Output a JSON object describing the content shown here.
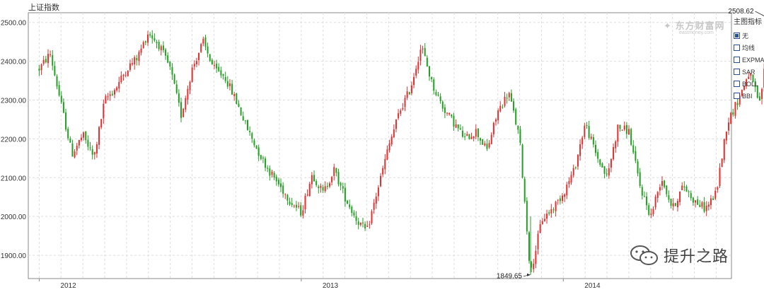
{
  "chart_data": {
    "type": "candlestick",
    "title": "上证指数",
    "xlabel": "",
    "ylabel": "",
    "ylim": [
      1840,
      2525
    ],
    "y_ticks": [
      "1900.00",
      "2000.00",
      "2100.00",
      "2200.00",
      "2300.00",
      "2400.00",
      "2500.00"
    ],
    "x_ticks": [
      "2012",
      "2013",
      "2014"
    ],
    "x_tick_months": [
      0,
      12,
      24
    ],
    "x_range_months": [
      -0.5,
      31.7
    ],
    "grid": true,
    "series": [
      {
        "values": [
          [
            0,
            2380
          ],
          [
            0.5,
            2420
          ],
          [
            1,
            2290
          ],
          [
            1.5,
            2160
          ],
          [
            2,
            2210
          ],
          [
            2.5,
            2150
          ],
          [
            3,
            2300
          ],
          [
            3.5,
            2330
          ],
          [
            4,
            2380
          ],
          [
            4.5,
            2410
          ],
          [
            5,
            2475
          ],
          [
            5.5,
            2440
          ],
          [
            6,
            2380
          ],
          [
            6.5,
            2260
          ],
          [
            7,
            2380
          ],
          [
            7.5,
            2450
          ],
          [
            8,
            2380
          ],
          [
            8.5,
            2360
          ],
          [
            9,
            2300
          ],
          [
            9.5,
            2230
          ],
          [
            10,
            2170
          ],
          [
            10.5,
            2120
          ],
          [
            11,
            2080
          ],
          [
            11.5,
            2040
          ],
          [
            12,
            2010
          ],
          [
            12.5,
            2110
          ],
          [
            13,
            2060
          ],
          [
            13.5,
            2120
          ],
          [
            14,
            2050
          ],
          [
            14.5,
            1995
          ],
          [
            15,
            1960
          ],
          [
            15.5,
            2070
          ],
          [
            16,
            2180
          ],
          [
            16.5,
            2270
          ],
          [
            17,
            2330
          ],
          [
            17.5,
            2440
          ],
          [
            18,
            2340
          ],
          [
            18.5,
            2280
          ],
          [
            19,
            2240
          ],
          [
            19.5,
            2200
          ],
          [
            20,
            2220
          ],
          [
            20.5,
            2170
          ],
          [
            21,
            2270
          ],
          [
            21.5,
            2320
          ],
          [
            22,
            2200
          ],
          [
            22.5,
            1849.65
          ],
          [
            23,
            1990
          ],
          [
            23.5,
            2020
          ],
          [
            24,
            2060
          ],
          [
            24.5,
            2120
          ],
          [
            25,
            2240
          ],
          [
            25.5,
            2160
          ],
          [
            26,
            2100
          ],
          [
            26.5,
            2230
          ],
          [
            27,
            2220
          ],
          [
            27.5,
            2080
          ],
          [
            28,
            2000
          ],
          [
            28.5,
            2100
          ],
          [
            29,
            2020
          ],
          [
            29.5,
            2080
          ],
          [
            30,
            2040
          ],
          [
            30.5,
            2020
          ],
          [
            31,
            2060
          ],
          [
            31.5,
            2240
          ],
          [
            32,
            2300
          ],
          [
            32.5,
            2370
          ],
          [
            33,
            2290
          ],
          [
            33.5,
            2508.62
          ]
        ],
        "color_up": "#e03030",
        "color_down": "#22a022"
      }
    ],
    "annotations": [
      {
        "label": "2508.62",
        "x": 33.5,
        "y": 2508.62
      },
      {
        "label": "1849.65",
        "x": 22.5,
        "y": 1849.65
      }
    ]
  },
  "indicator_panel": {
    "title": "主图指标",
    "items": [
      {
        "label": "无",
        "checked": true
      },
      {
        "label": "均线",
        "checked": false
      },
      {
        "label": "EXPMA",
        "checked": false
      },
      {
        "label": "SAR",
        "checked": false
      },
      {
        "label": "BOLL",
        "checked": false
      },
      {
        "label": "BBI",
        "checked": false
      }
    ]
  },
  "watermark": {
    "main": "东方财富网",
    "sub": "eastmoney.com",
    "icon": "eastmoney-logo-icon"
  },
  "wechat_badge": {
    "icon": "wechat-icon",
    "name": "提升之路"
  },
  "colors": {
    "up": "#e03030",
    "down": "#22a022",
    "grid": "#dddddd",
    "axis": "#888888"
  }
}
